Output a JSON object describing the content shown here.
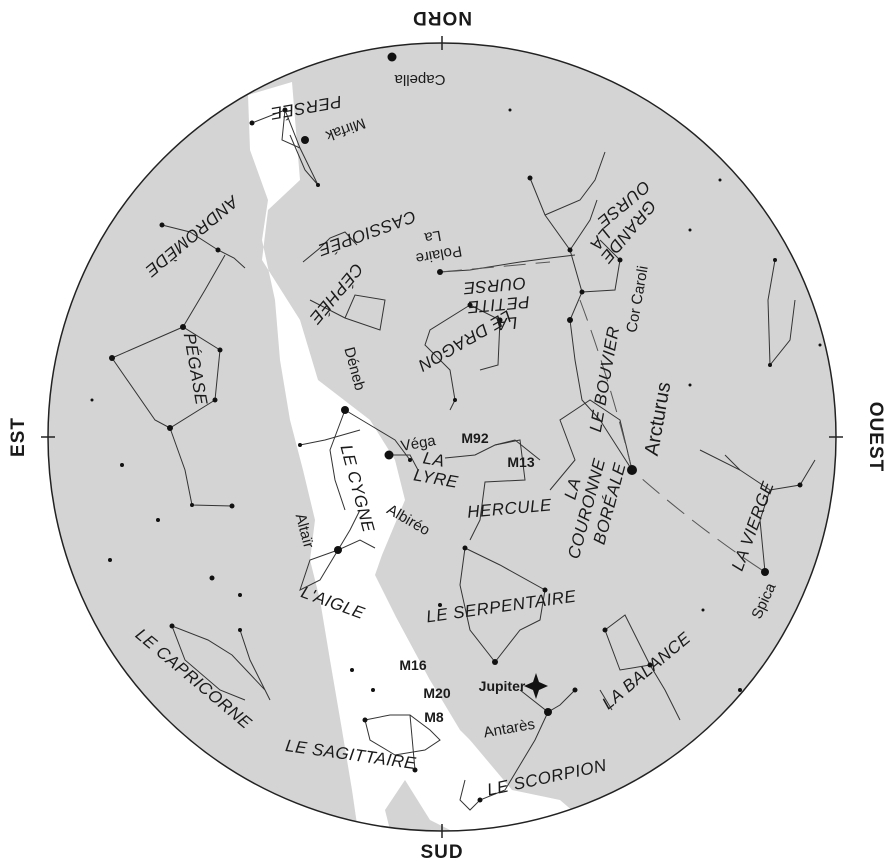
{
  "directions": {
    "north": "NORD",
    "south": "SUD",
    "east": "EST",
    "west": "OUEST"
  },
  "constellations": {
    "persee": "PERSÉE",
    "cassiopee": "CASSIOPÉE",
    "andromede": "ANDROMÈDE",
    "cephee": "CÉPHÉE",
    "pegase": "PÉGASE",
    "petite_ourse_1": "LA",
    "petite_ourse_2": "PETITE",
    "petite_ourse_3": "OURSE",
    "grande_ourse_1": "LA",
    "grande_ourse_2": "GRANDE",
    "grande_ourse_3": "OURSE",
    "dragon": "LE DRAGON",
    "bouvier": "LE BOUVIER",
    "cygne": "LE CYGNE",
    "lyre_1": "LA",
    "lyre_2": "LYRE",
    "hercule": "HERCULE",
    "couronne_1": "LA",
    "couronne_2": "COURONNE",
    "couronne_3": "BORÉALE",
    "vierge": "LA VIERGE",
    "aigle": "L'AIGLE",
    "serpentaire": "LE SERPENTAIRE",
    "capricorne": "LE CAPRICORNE",
    "balance": "LA BALANCE",
    "sagittaire": "LE SAGITTAIRE",
    "scorpion": "LE SCORPION"
  },
  "stars": {
    "capella": "Capella",
    "mirfak": "Mirfak",
    "polaire_1": "La",
    "polaire_2": "Polaire",
    "cor_caroli": "Cor Caroli",
    "arcturus": "Arcturus",
    "deneb": "Déneb",
    "vega": "Véga",
    "albireo": "Albiréo",
    "altair": "Altaïr",
    "spica": "Spica",
    "antares": "Antarès"
  },
  "objects": {
    "m92": "M92",
    "m13": "M13",
    "m16": "M16",
    "m20": "M20",
    "m8": "M8",
    "jupiter": "Jupiter"
  },
  "colors": {
    "sky": "#d4d4d4",
    "milky_way": "#ffffff",
    "lines": "#333333"
  }
}
